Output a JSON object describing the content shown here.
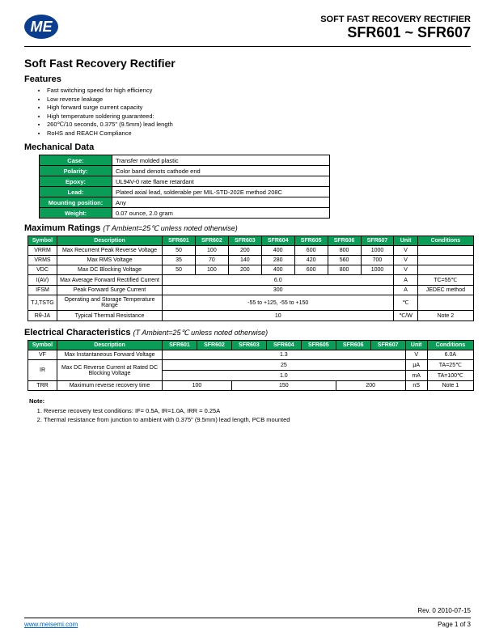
{
  "header": {
    "subtitle": "SOFT FAST RECOVERY RECTIFIER",
    "title": "SFR601 ~ SFR607",
    "logo_text": "ME",
    "logo_bg": "#0a3d8f"
  },
  "main_title": "Soft Fast Recovery Rectifier",
  "features_heading": "Features",
  "features": [
    "Fast switching speed for high efficiency",
    "Low reverse leakage",
    "High forward surge current capacity",
    "High temperature soldering guaranteed:",
    "260℃/10 seconds, 0.375\" (9.5mm) lead length",
    "RoHS and REACH Compliance"
  ],
  "mech_heading": "Mechanical Data",
  "mech": [
    {
      "k": "Case:",
      "v": "Transfer molded plastic"
    },
    {
      "k": "Polarity:",
      "v": "Color band denots cathode end"
    },
    {
      "k": "Epoxy:",
      "v": "UL94V-0 rate flame retardant"
    },
    {
      "k": "Lead:",
      "v": "Plated axial lead, solderable per MIL-STD-202E method 208C"
    },
    {
      "k": "Mounting position:",
      "v": "Any"
    },
    {
      "k": "Weight:",
      "v": "0.07 ounce, 2.0 gram"
    }
  ],
  "max_heading": "Maximum Ratings",
  "max_note": "(T Ambient=25℃ unless noted otherwise)",
  "max_cols": [
    "Symbol",
    "Description",
    "SFR601",
    "SFR602",
    "SFR603",
    "SFR604",
    "SFR605",
    "SFR606",
    "SFR607",
    "Unit",
    "Conditions"
  ],
  "max_rows": [
    {
      "sym": "VRRM",
      "desc": "Max Recurrent Peak Reverse Voltage",
      "v": [
        "50",
        "100",
        "200",
        "400",
        "600",
        "800",
        "1000"
      ],
      "unit": "V",
      "cond": ""
    },
    {
      "sym": "VRMS",
      "desc": "Max RMS Voltage",
      "v": [
        "35",
        "70",
        "140",
        "280",
        "420",
        "560",
        "700"
      ],
      "unit": "V",
      "cond": ""
    },
    {
      "sym": "VDC",
      "desc": "Max DC Blocking Voltage",
      "v": [
        "50",
        "100",
        "200",
        "400",
        "600",
        "800",
        "1000"
      ],
      "unit": "V",
      "cond": ""
    },
    {
      "sym": "I(AV)",
      "desc": "Max Average Forward Rectified Current",
      "span": "6.0",
      "unit": "A",
      "cond": "TC=55℃"
    },
    {
      "sym": "IFSM",
      "desc": "Peak Forward Surge Current",
      "span": "300",
      "unit": "A",
      "cond": "JEDEC method"
    },
    {
      "sym": "TJ,TSTG",
      "desc": "Operating and Storage Temperature Range",
      "span": "-55 to +125, -55 to +150",
      "unit": "℃",
      "cond": ""
    },
    {
      "sym": "Rθ-JA",
      "desc": "Typical Thermal Resistance",
      "span": "10",
      "unit": "℃/W",
      "cond": "Note 2"
    }
  ],
  "elec_heading": "Electrical Characteristics",
  "elec_note": "(T Ambient=25℃ unless noted otherwise)",
  "elec_cols": [
    "Symbol",
    "Description",
    "SFR601",
    "SFR602",
    "SFR603",
    "SFR604",
    "SFR605",
    "SFR606",
    "SFR607",
    "Unit",
    "Conditions"
  ],
  "elec": {
    "vf": {
      "sym": "VF",
      "desc": "Max Instantaneous Forward Voltage",
      "val": "1.3",
      "unit": "V",
      "cond": "6.0A"
    },
    "ir": {
      "sym": "IR",
      "desc": "Max DC Reverse Current at Rated DC Blocking Voltage",
      "val1": "25",
      "unit1": "μA",
      "cond1": "TA=25℃",
      "val2": "1.0",
      "unit2": "mA",
      "cond2": "TA=100℃"
    },
    "trr": {
      "sym": "TRR",
      "desc": "Maximum reverse recovery time",
      "v": [
        "100",
        "150",
        "200"
      ],
      "unit": "nS",
      "cond": "Note 1"
    }
  },
  "notes_heading": "Note:",
  "notes": [
    "Reverse recovery test conditions: IF= 0.5A, IR=1.0A, IRR = 0.25A",
    "Thermal resistance from junction to ambient with 0.375\" (9.5mm) lead length, PCB mounted"
  ],
  "footer": {
    "rev": "Rev. 0  2010-07-15",
    "url": "www.meisemi.com",
    "page": "Page 1 of 3"
  },
  "colors": {
    "table_header_bg": "#0a9d58",
    "table_header_fg": "#ffffff"
  }
}
